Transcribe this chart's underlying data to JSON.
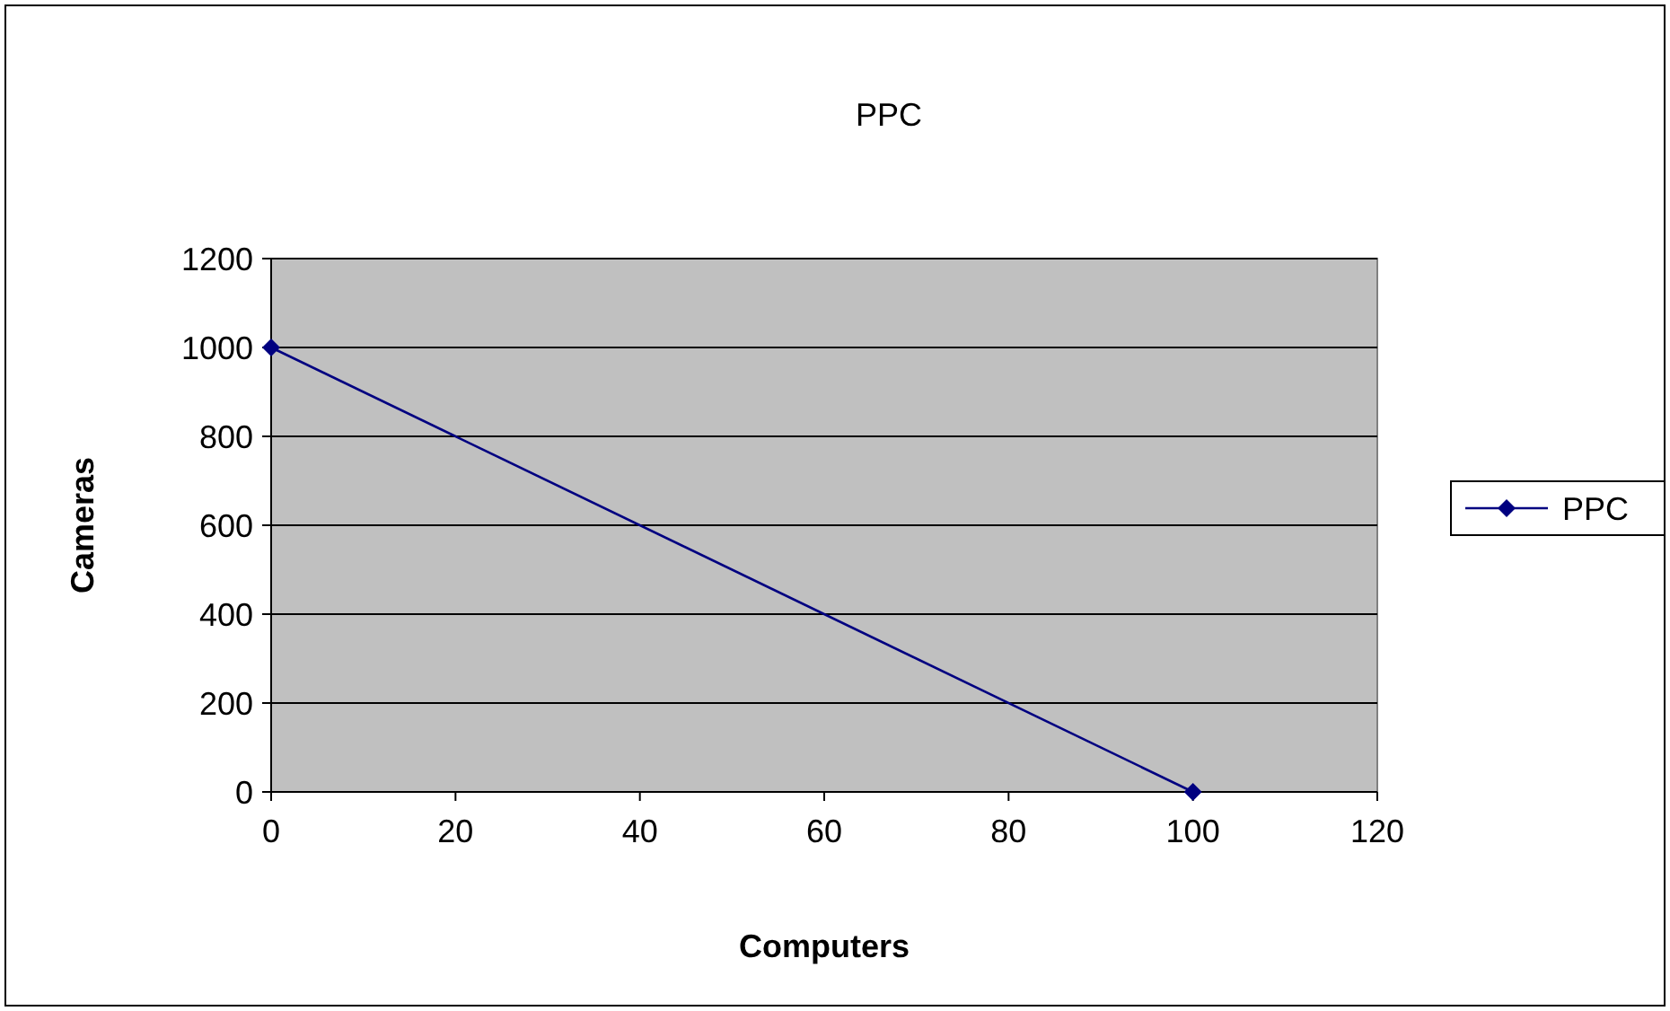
{
  "chart_data": {
    "type": "line",
    "title": "PPC",
    "xlabel": "Computers",
    "ylabel": "Cameras",
    "x": [
      0,
      100
    ],
    "series": [
      {
        "name": "PPC",
        "color": "#000080",
        "values": [
          1000,
          0
        ]
      }
    ],
    "xlim": [
      0,
      120
    ],
    "xticks": [
      0,
      20,
      40,
      60,
      80,
      100,
      120
    ],
    "ylim": [
      0,
      1200
    ],
    "yticks": [
      0,
      200,
      400,
      600,
      800,
      1000,
      1200
    ],
    "grid": "y",
    "legend": "right",
    "marker": "diamond",
    "line_style": "solid"
  }
}
